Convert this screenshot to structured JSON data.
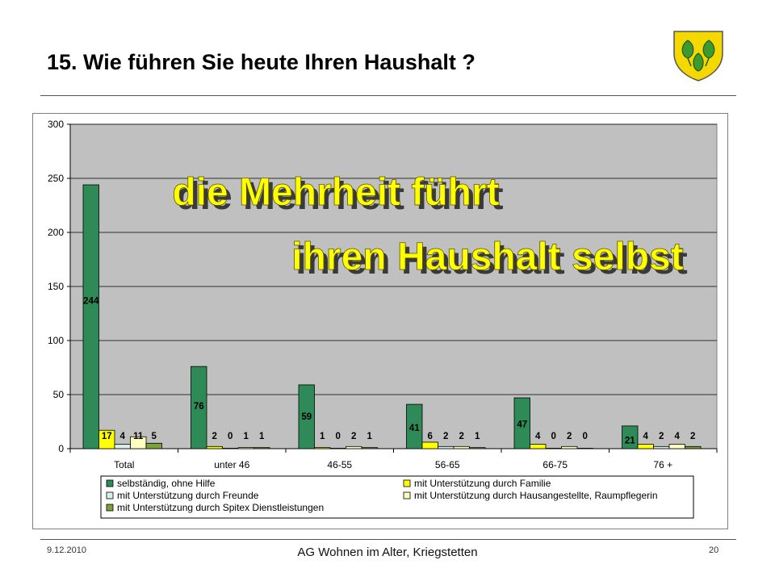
{
  "slide": {
    "title": "15. Wie führen Sie heute Ihren Haushalt ?",
    "footer_date": "9.12.2010",
    "footer_center": "AG Wohnen im Alter, Kriegstetten",
    "page_number": "20",
    "logo_icon": "coat-of-arms-icon"
  },
  "chart_data": {
    "type": "bar",
    "categories": [
      "Total",
      "unter 46",
      "46-55",
      "56-65",
      "66-75",
      "76 +"
    ],
    "series": [
      {
        "name": "selbständig, ohne Hilfe",
        "color": "#2e8b57",
        "values": [
          244,
          76,
          59,
          41,
          47,
          21
        ],
        "labels": [
          "244",
          "76",
          "59",
          "41",
          "47",
          "21"
        ]
      },
      {
        "name": "mit Unterstützung durch Familie",
        "color": "#ffff00",
        "values": [
          17,
          2,
          1,
          6,
          4,
          4
        ],
        "labels": [
          "17",
          "2",
          "1",
          "6",
          "4",
          "4"
        ]
      },
      {
        "name": "mit Unterstützung durch Freunde",
        "color": "#d4f0e8",
        "values": [
          4,
          0,
          0,
          2,
          0,
          2
        ],
        "labels": [
          "4",
          "0",
          "0",
          "2",
          "0",
          "2"
        ]
      },
      {
        "name": "mit Unterstützung durch Hausangestellte, Raumpflegerin",
        "color": "#ffffc0",
        "values": [
          11,
          1,
          2,
          2,
          2,
          4
        ],
        "labels": [
          "11",
          "1",
          "2",
          "2",
          "2",
          "4"
        ]
      },
      {
        "name": "mit Unterstützung durch Spitex Dienstleistungen",
        "color": "#7aa23a",
        "values": [
          5,
          1,
          1,
          1,
          0,
          2
        ],
        "labels": [
          "5",
          "1",
          "1",
          "1",
          "0",
          "2"
        ]
      }
    ],
    "ylim": [
      0,
      300
    ],
    "yticks": [
      0,
      50,
      100,
      150,
      200,
      250,
      300
    ],
    "grid": true,
    "plot_background": "#c0c0c0",
    "legend_position": "bottom",
    "annotation_lines": [
      "die Mehrheit führt",
      "ihren Haushalt selbst"
    ],
    "annotation_color": "#ffff00"
  }
}
